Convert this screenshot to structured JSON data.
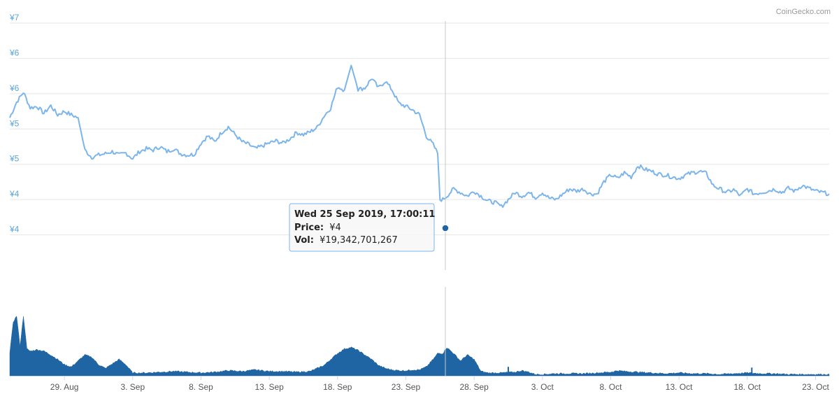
{
  "credit": "CoinGecko.com",
  "tooltip": {
    "date": "Wed 25 Sep 2019, 17:00:11",
    "price_label": "Price:",
    "price_value": "¥4",
    "vol_label": "Vol:",
    "vol_value": "¥19,342,701,267"
  },
  "colors": {
    "price_line": "#7cb5ec",
    "volume_fill": "#1f64a3",
    "marker": "#1f64a3",
    "tooltip_border": "#7cb5ec",
    "crosshair": "#c8c8c8",
    "grid": "#e6e6e6",
    "tick_label": "#5aa3d8"
  },
  "chart_data": [
    {
      "type": "line",
      "name": "price",
      "x_range": [
        "2019-08-25",
        "2019-10-24"
      ],
      "ylim": [
        3.5,
        7.0
      ],
      "y_tick_labels": [
        "¥7",
        "¥6",
        "¥6",
        "¥5",
        "¥5",
        "¥4",
        "¥4"
      ],
      "y_tick_values": [
        7.0,
        6.5,
        6.0,
        5.5,
        5.0,
        4.5,
        4.0
      ],
      "x_tick_labels": [
        "29. Aug",
        "3. Sep",
        "8. Sep",
        "13. Sep",
        "18. Sep",
        "23. Sep",
        "28. Sep",
        "3. Oct",
        "8. Oct",
        "13. Oct",
        "18. Oct",
        "23. Oct"
      ],
      "x_tick_dates": [
        "2019-08-29",
        "2019-09-03",
        "2019-09-08",
        "2019-09-13",
        "2019-09-18",
        "2019-09-23",
        "2019-09-28",
        "2019-10-03",
        "2019-10-08",
        "2019-10-13",
        "2019-10-18",
        "2019-10-23"
      ],
      "grid": true,
      "points": [
        [
          "2019-08-25",
          5.66
        ],
        [
          "2019-08-25T12:00",
          5.88
        ],
        [
          "2019-08-26",
          6.02
        ],
        [
          "2019-08-26T12:00",
          5.8
        ],
        [
          "2019-08-27",
          5.82
        ],
        [
          "2019-08-27T12:00",
          5.72
        ],
        [
          "2019-08-28",
          5.83
        ],
        [
          "2019-08-28T12:00",
          5.7
        ],
        [
          "2019-08-29",
          5.75
        ],
        [
          "2019-08-29T12:00",
          5.7
        ],
        [
          "2019-08-30",
          5.66
        ],
        [
          "2019-08-30T12:00",
          5.2
        ],
        [
          "2019-08-31",
          5.1
        ],
        [
          "2019-08-31T12:00",
          5.13
        ],
        [
          "2019-09-01",
          5.15
        ],
        [
          "2019-09-01T12:00",
          5.18
        ],
        [
          "2019-09-02",
          5.13
        ],
        [
          "2019-09-02T12:00",
          5.16
        ],
        [
          "2019-09-03",
          5.08
        ],
        [
          "2019-09-03T12:00",
          5.18
        ],
        [
          "2019-09-04",
          5.22
        ],
        [
          "2019-09-04T12:00",
          5.2
        ],
        [
          "2019-09-05",
          5.25
        ],
        [
          "2019-09-05T12:00",
          5.18
        ],
        [
          "2019-09-06",
          5.22
        ],
        [
          "2019-09-06T12:00",
          5.15
        ],
        [
          "2019-09-07",
          5.13
        ],
        [
          "2019-09-07T12:00",
          5.14
        ],
        [
          "2019-09-08",
          5.3
        ],
        [
          "2019-09-08T12:00",
          5.4
        ],
        [
          "2019-09-09",
          5.32
        ],
        [
          "2019-09-09T12:00",
          5.45
        ],
        [
          "2019-09-10",
          5.53
        ],
        [
          "2019-09-10T12:00",
          5.42
        ],
        [
          "2019-09-11",
          5.32
        ],
        [
          "2019-09-11T12:00",
          5.28
        ],
        [
          "2019-09-12",
          5.22
        ],
        [
          "2019-09-12T12:00",
          5.26
        ],
        [
          "2019-09-13",
          5.3
        ],
        [
          "2019-09-13T12:00",
          5.33
        ],
        [
          "2019-09-14",
          5.3
        ],
        [
          "2019-09-14T12:00",
          5.36
        ],
        [
          "2019-09-15",
          5.45
        ],
        [
          "2019-09-15T12:00",
          5.42
        ],
        [
          "2019-09-16",
          5.46
        ],
        [
          "2019-09-16T12:00",
          5.52
        ],
        [
          "2019-09-17",
          5.68
        ],
        [
          "2019-09-17T12:00",
          5.8
        ],
        [
          "2019-09-18",
          6.1
        ],
        [
          "2019-09-18T12:00",
          6.05
        ],
        [
          "2019-09-19",
          6.4
        ],
        [
          "2019-09-19T12:00",
          6.06
        ],
        [
          "2019-09-20",
          6.08
        ],
        [
          "2019-09-20T12:00",
          6.22
        ],
        [
          "2019-09-21",
          6.08
        ],
        [
          "2019-09-21T12:00",
          6.18
        ],
        [
          "2019-09-22",
          6.05
        ],
        [
          "2019-09-22T12:00",
          5.86
        ],
        [
          "2019-09-23",
          5.82
        ],
        [
          "2019-09-23T12:00",
          5.77
        ],
        [
          "2019-09-24",
          5.7
        ],
        [
          "2019-09-24T12:00",
          5.4
        ],
        [
          "2019-09-25",
          5.28
        ],
        [
          "2019-09-25T08:00",
          5.15
        ],
        [
          "2019-09-25T12:00",
          4.5
        ],
        [
          "2019-09-25T17:00",
          4.5
        ],
        [
          "2019-09-26",
          4.55
        ],
        [
          "2019-09-26T12:00",
          4.65
        ],
        [
          "2019-09-27",
          4.6
        ],
        [
          "2019-09-27T12:00",
          4.55
        ],
        [
          "2019-09-28",
          4.62
        ],
        [
          "2019-09-28T12:00",
          4.55
        ],
        [
          "2019-09-29",
          4.48
        ],
        [
          "2019-09-29T12:00",
          4.46
        ],
        [
          "2019-09-30",
          4.4
        ],
        [
          "2019-09-30T12:00",
          4.5
        ],
        [
          "2019-10-01",
          4.6
        ],
        [
          "2019-10-01T12:00",
          4.55
        ],
        [
          "2019-10-02",
          4.6
        ],
        [
          "2019-10-02T12:00",
          4.53
        ],
        [
          "2019-10-03",
          4.6
        ],
        [
          "2019-10-03T12:00",
          4.52
        ],
        [
          "2019-10-04",
          4.5
        ],
        [
          "2019-10-04T12:00",
          4.58
        ],
        [
          "2019-10-05",
          4.65
        ],
        [
          "2019-10-05T12:00",
          4.62
        ],
        [
          "2019-10-06",
          4.65
        ],
        [
          "2019-10-06T12:00",
          4.58
        ],
        [
          "2019-10-07",
          4.58
        ],
        [
          "2019-10-07T12:00",
          4.75
        ],
        [
          "2019-10-08",
          4.85
        ],
        [
          "2019-10-08T12:00",
          4.8
        ],
        [
          "2019-10-09",
          4.88
        ],
        [
          "2019-10-09T12:00",
          4.82
        ],
        [
          "2019-10-10",
          4.98
        ],
        [
          "2019-10-10T12:00",
          4.93
        ],
        [
          "2019-10-11",
          4.9
        ],
        [
          "2019-10-11T12:00",
          4.86
        ],
        [
          "2019-10-12",
          4.85
        ],
        [
          "2019-10-12T12:00",
          4.82
        ],
        [
          "2019-10-13",
          4.8
        ],
        [
          "2019-10-13T12:00",
          4.85
        ],
        [
          "2019-10-14",
          4.88
        ],
        [
          "2019-10-14T12:00",
          4.9
        ],
        [
          "2019-10-15",
          4.87
        ],
        [
          "2019-10-15T12:00",
          4.7
        ],
        [
          "2019-10-16",
          4.65
        ],
        [
          "2019-10-16T12:00",
          4.6
        ],
        [
          "2019-10-17",
          4.64
        ],
        [
          "2019-10-17T12:00",
          4.55
        ],
        [
          "2019-10-18",
          4.65
        ],
        [
          "2019-10-18T12:00",
          4.58
        ],
        [
          "2019-10-19",
          4.6
        ],
        [
          "2019-10-19T12:00",
          4.62
        ],
        [
          "2019-10-20",
          4.65
        ],
        [
          "2019-10-20T12:00",
          4.6
        ],
        [
          "2019-10-21",
          4.66
        ],
        [
          "2019-10-21T12:00",
          4.62
        ],
        [
          "2019-10-22",
          4.7
        ],
        [
          "2019-10-22T12:00",
          4.66
        ],
        [
          "2019-10-23",
          4.62
        ],
        [
          "2019-10-23T12:00",
          4.6
        ],
        [
          "2019-10-24",
          4.58
        ]
      ]
    },
    {
      "type": "area",
      "name": "volume",
      "x_range": [
        "2019-08-25",
        "2019-10-24"
      ],
      "ylim": [
        0,
        1.0
      ],
      "relative_values": true,
      "points": [
        [
          "2019-08-25",
          0.3
        ],
        [
          "2019-08-25T06:00",
          0.72
        ],
        [
          "2019-08-25T12:00",
          0.8
        ],
        [
          "2019-08-25T18:00",
          0.4
        ],
        [
          "2019-08-26",
          0.8
        ],
        [
          "2019-08-26T06:00",
          0.36
        ],
        [
          "2019-08-26T12:00",
          0.33
        ],
        [
          "2019-08-27",
          0.35
        ],
        [
          "2019-08-27T12:00",
          0.33
        ],
        [
          "2019-08-28",
          0.28
        ],
        [
          "2019-08-28T12:00",
          0.22
        ],
        [
          "2019-08-29",
          0.15
        ],
        [
          "2019-08-29T12:00",
          0.12
        ],
        [
          "2019-08-30",
          0.2
        ],
        [
          "2019-08-30T12:00",
          0.28
        ],
        [
          "2019-08-31",
          0.25
        ],
        [
          "2019-08-31T12:00",
          0.15
        ],
        [
          "2019-09-01",
          0.1
        ],
        [
          "2019-09-01T12:00",
          0.16
        ],
        [
          "2019-09-02",
          0.22
        ],
        [
          "2019-09-02T12:00",
          0.15
        ],
        [
          "2019-09-03",
          0.04
        ],
        [
          "2019-09-04",
          0.04
        ],
        [
          "2019-09-05",
          0.05
        ],
        [
          "2019-09-06",
          0.06
        ],
        [
          "2019-09-07",
          0.05
        ],
        [
          "2019-09-08",
          0.04
        ],
        [
          "2019-09-09",
          0.05
        ],
        [
          "2019-09-10",
          0.07
        ],
        [
          "2019-09-11",
          0.06
        ],
        [
          "2019-09-12",
          0.08
        ],
        [
          "2019-09-13",
          0.06
        ],
        [
          "2019-09-14",
          0.06
        ],
        [
          "2019-09-15",
          0.05
        ],
        [
          "2019-09-16",
          0.06
        ],
        [
          "2019-09-16T12:00",
          0.1
        ],
        [
          "2019-09-17",
          0.14
        ],
        [
          "2019-09-17T12:00",
          0.22
        ],
        [
          "2019-09-18",
          0.3
        ],
        [
          "2019-09-18T12:00",
          0.36
        ],
        [
          "2019-09-19",
          0.38
        ],
        [
          "2019-09-19T12:00",
          0.34
        ],
        [
          "2019-09-20",
          0.28
        ],
        [
          "2019-09-20T12:00",
          0.22
        ],
        [
          "2019-09-21",
          0.14
        ],
        [
          "2019-09-21T12:00",
          0.1
        ],
        [
          "2019-09-22",
          0.08
        ],
        [
          "2019-09-22T12:00",
          0.07
        ],
        [
          "2019-09-23",
          0.07
        ],
        [
          "2019-09-23T12:00",
          0.08
        ],
        [
          "2019-09-24",
          0.08
        ],
        [
          "2019-09-24T12:00",
          0.12
        ],
        [
          "2019-09-25",
          0.22
        ],
        [
          "2019-09-25T08:00",
          0.3
        ],
        [
          "2019-09-25T17:00",
          0.3
        ],
        [
          "2019-09-26",
          0.38
        ],
        [
          "2019-09-26T12:00",
          0.3
        ],
        [
          "2019-09-27",
          0.2
        ],
        [
          "2019-09-27T12:00",
          0.28
        ],
        [
          "2019-09-28",
          0.22
        ],
        [
          "2019-09-28T12:00",
          0.06
        ],
        [
          "2019-09-29",
          0.04
        ],
        [
          "2019-09-30",
          0.04
        ],
        [
          "2019-10-01",
          0.05
        ],
        [
          "2019-10-01T12:00",
          0.07
        ],
        [
          "2019-10-02",
          0.05
        ],
        [
          "2019-10-02T12:00",
          0.02
        ],
        [
          "2019-10-03",
          0.02
        ],
        [
          "2019-10-04",
          0.03
        ],
        [
          "2019-10-05",
          0.03
        ],
        [
          "2019-10-06",
          0.03
        ],
        [
          "2019-10-07",
          0.04
        ],
        [
          "2019-10-08",
          0.05
        ],
        [
          "2019-10-08T12:00",
          0.07
        ],
        [
          "2019-10-09",
          0.06
        ],
        [
          "2019-10-10",
          0.05
        ],
        [
          "2019-10-11",
          0.04
        ],
        [
          "2019-10-12",
          0.03
        ],
        [
          "2019-10-13",
          0.04
        ],
        [
          "2019-10-14",
          0.03
        ],
        [
          "2019-10-15",
          0.03
        ],
        [
          "2019-10-16",
          0.02
        ],
        [
          "2019-10-17",
          0.03
        ],
        [
          "2019-10-18",
          0.04
        ],
        [
          "2019-10-19",
          0.03
        ],
        [
          "2019-10-20",
          0.03
        ],
        [
          "2019-10-21",
          0.02
        ],
        [
          "2019-10-22",
          0.02
        ],
        [
          "2019-10-23",
          0.02
        ],
        [
          "2019-10-24",
          0.02
        ]
      ],
      "spikes": [
        [
          "2019-09-30T12:00",
          0.12
        ],
        [
          "2019-10-18T08:00",
          0.11
        ]
      ]
    }
  ]
}
